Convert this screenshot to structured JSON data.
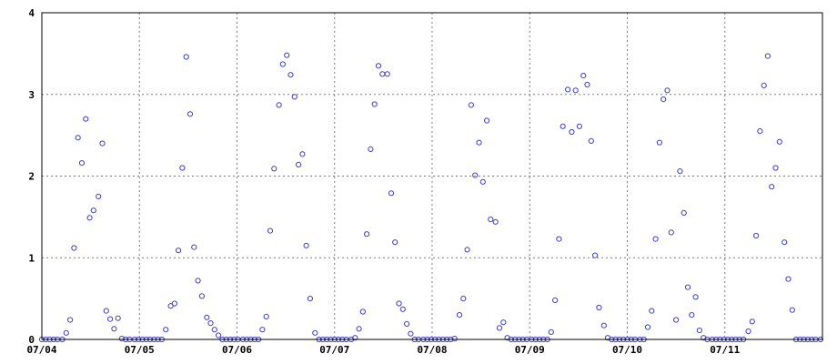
{
  "chart_data": {
    "type": "scatter",
    "title": "",
    "xlabel": "",
    "ylabel": "",
    "grid": true,
    "marker_color": "#4040c8",
    "x_ticks": [
      "07/04",
      "07/05",
      "07/06",
      "07/07",
      "07/08",
      "07/09",
      "07/10",
      "07/11"
    ],
    "xlim_days": [
      0,
      8
    ],
    "ylim": [
      0,
      4
    ],
    "y_ticks": [
      "0",
      "1",
      "2",
      "3",
      "4"
    ],
    "series": [
      {
        "points": [
          [
            0.0,
            0
          ],
          [
            0.04,
            0
          ],
          [
            0.08,
            0
          ],
          [
            0.12,
            0
          ],
          [
            0.16,
            0
          ],
          [
            0.21,
            0
          ],
          [
            0.25,
            0.08
          ],
          [
            0.29,
            0.24
          ],
          [
            0.33,
            1.12
          ],
          [
            0.37,
            2.47
          ],
          [
            0.41,
            2.16
          ],
          [
            0.45,
            2.7
          ],
          [
            0.49,
            1.49
          ],
          [
            0.53,
            1.58
          ],
          [
            0.58,
            1.75
          ],
          [
            0.62,
            2.4
          ],
          [
            0.66,
            0.35
          ],
          [
            0.7,
            0.25
          ],
          [
            0.74,
            0.13
          ],
          [
            0.78,
            0.26
          ],
          [
            0.82,
            0.01
          ],
          [
            0.86,
            0
          ],
          [
            0.9,
            0
          ],
          [
            0.95,
            0
          ],
          [
            0.99,
            0
          ],
          [
            1.03,
            0
          ],
          [
            1.07,
            0
          ],
          [
            1.11,
            0
          ],
          [
            1.15,
            0
          ],
          [
            1.19,
            0
          ],
          [
            1.23,
            0
          ],
          [
            1.27,
            0.12
          ],
          [
            1.32,
            0.41
          ],
          [
            1.36,
            0.44
          ],
          [
            1.4,
            1.09
          ],
          [
            1.44,
            2.1
          ],
          [
            1.48,
            3.46
          ],
          [
            1.52,
            2.76
          ],
          [
            1.56,
            1.13
          ],
          [
            1.6,
            0.72
          ],
          [
            1.64,
            0.53
          ],
          [
            1.69,
            0.27
          ],
          [
            1.73,
            0.2
          ],
          [
            1.77,
            0.12
          ],
          [
            1.81,
            0.05
          ],
          [
            1.85,
            0
          ],
          [
            1.89,
            0
          ],
          [
            1.93,
            0
          ],
          [
            1.97,
            0
          ],
          [
            2.01,
            0
          ],
          [
            2.06,
            0
          ],
          [
            2.1,
            0
          ],
          [
            2.14,
            0
          ],
          [
            2.18,
            0
          ],
          [
            2.22,
            0
          ],
          [
            2.26,
            0.12
          ],
          [
            2.3,
            0.28
          ],
          [
            2.34,
            1.33
          ],
          [
            2.38,
            2.09
          ],
          [
            2.43,
            2.87
          ],
          [
            2.47,
            3.37
          ],
          [
            2.51,
            3.48
          ],
          [
            2.55,
            3.24
          ],
          [
            2.59,
            2.97
          ],
          [
            2.63,
            2.14
          ],
          [
            2.67,
            2.27
          ],
          [
            2.71,
            1.15
          ],
          [
            2.75,
            0.5
          ],
          [
            2.8,
            0.08
          ],
          [
            2.84,
            0
          ],
          [
            2.88,
            0
          ],
          [
            2.92,
            0
          ],
          [
            2.96,
            0
          ],
          [
            3.0,
            0
          ],
          [
            3.04,
            0
          ],
          [
            3.08,
            0
          ],
          [
            3.12,
            0
          ],
          [
            3.17,
            0
          ],
          [
            3.21,
            0.02
          ],
          [
            3.25,
            0.13
          ],
          [
            3.29,
            0.34
          ],
          [
            3.33,
            1.29
          ],
          [
            3.37,
            2.33
          ],
          [
            3.41,
            2.88
          ],
          [
            3.45,
            3.35
          ],
          [
            3.49,
            3.25
          ],
          [
            3.54,
            3.25
          ],
          [
            3.58,
            1.79
          ],
          [
            3.62,
            1.19
          ],
          [
            3.66,
            0.44
          ],
          [
            3.7,
            0.37
          ],
          [
            3.74,
            0.19
          ],
          [
            3.78,
            0.07
          ],
          [
            3.82,
            0
          ],
          [
            3.86,
            0
          ],
          [
            3.91,
            0
          ],
          [
            3.95,
            0
          ],
          [
            3.99,
            0
          ],
          [
            4.03,
            0
          ],
          [
            4.07,
            0
          ],
          [
            4.11,
            0
          ],
          [
            4.15,
            0
          ],
          [
            4.19,
            0
          ],
          [
            4.23,
            0.01
          ],
          [
            4.28,
            0.3
          ],
          [
            4.32,
            0.5
          ],
          [
            4.36,
            1.1
          ],
          [
            4.4,
            2.87
          ],
          [
            4.44,
            2.01
          ],
          [
            4.48,
            2.41
          ],
          [
            4.52,
            1.93
          ],
          [
            4.56,
            2.68
          ],
          [
            4.6,
            1.47
          ],
          [
            4.65,
            1.44
          ],
          [
            4.69,
            0.14
          ],
          [
            4.73,
            0.21
          ],
          [
            4.77,
            0.02
          ],
          [
            4.81,
            0
          ],
          [
            4.85,
            0
          ],
          [
            4.89,
            0
          ],
          [
            4.93,
            0
          ],
          [
            4.97,
            0
          ],
          [
            5.02,
            0
          ],
          [
            5.06,
            0
          ],
          [
            5.1,
            0
          ],
          [
            5.14,
            0
          ],
          [
            5.18,
            0
          ],
          [
            5.22,
            0.09
          ],
          [
            5.26,
            0.48
          ],
          [
            5.3,
            1.23
          ],
          [
            5.34,
            2.61
          ],
          [
            5.39,
            3.06
          ],
          [
            5.43,
            2.54
          ],
          [
            5.47,
            3.05
          ],
          [
            5.51,
            2.61
          ],
          [
            5.55,
            3.23
          ],
          [
            5.59,
            3.12
          ],
          [
            5.63,
            2.43
          ],
          [
            5.67,
            1.03
          ],
          [
            5.71,
            0.39
          ],
          [
            5.76,
            0.17
          ],
          [
            5.8,
            0.02
          ],
          [
            5.84,
            0
          ],
          [
            5.88,
            0
          ],
          [
            5.92,
            0
          ],
          [
            5.96,
            0
          ],
          [
            6.0,
            0
          ],
          [
            6.04,
            0
          ],
          [
            6.08,
            0
          ],
          [
            6.13,
            0
          ],
          [
            6.17,
            0
          ],
          [
            6.21,
            0.15
          ],
          [
            6.25,
            0.35
          ],
          [
            6.29,
            1.23
          ],
          [
            6.33,
            2.41
          ],
          [
            6.37,
            2.94
          ],
          [
            6.41,
            3.05
          ],
          [
            6.45,
            1.31
          ],
          [
            6.5,
            0.24
          ],
          [
            6.54,
            2.06
          ],
          [
            6.58,
            1.55
          ],
          [
            6.62,
            0.64
          ],
          [
            6.66,
            0.3
          ],
          [
            6.7,
            0.52
          ],
          [
            6.74,
            0.11
          ],
          [
            6.78,
            0.02
          ],
          [
            6.82,
            0
          ],
          [
            6.87,
            0
          ],
          [
            6.91,
            0
          ],
          [
            6.95,
            0
          ],
          [
            6.99,
            0
          ],
          [
            7.03,
            0
          ],
          [
            7.07,
            0
          ],
          [
            7.11,
            0
          ],
          [
            7.15,
            0
          ],
          [
            7.19,
            0
          ],
          [
            7.24,
            0.1
          ],
          [
            7.28,
            0.22
          ],
          [
            7.32,
            1.27
          ],
          [
            7.36,
            2.55
          ],
          [
            7.4,
            3.11
          ],
          [
            7.44,
            3.47
          ],
          [
            7.48,
            1.87
          ],
          [
            7.52,
            2.1
          ],
          [
            7.56,
            2.42
          ],
          [
            7.61,
            1.19
          ],
          [
            7.65,
            0.74
          ],
          [
            7.69,
            0.36
          ],
          [
            7.73,
            0
          ],
          [
            7.77,
            0
          ],
          [
            7.81,
            0
          ],
          [
            7.85,
            0
          ],
          [
            7.89,
            0
          ],
          [
            7.93,
            0
          ],
          [
            7.98,
            0
          ]
        ]
      }
    ]
  }
}
